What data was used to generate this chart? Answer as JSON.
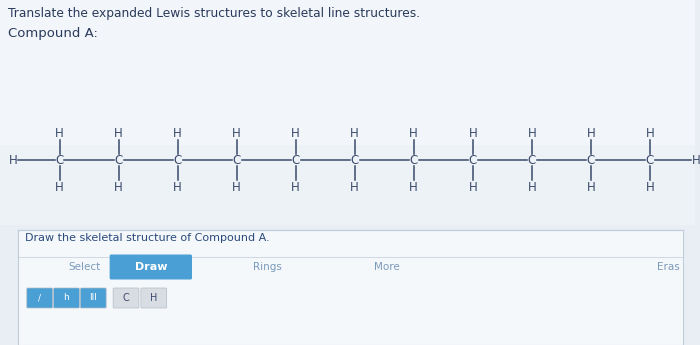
{
  "title": "Translate the expanded Lewis structures to skeletal line structures.",
  "compound_label": "Compound A:",
  "draw_label": "Draw the skeletal structure of Compound A.",
  "n_carbons": 11,
  "bg_top_color": "#e8eef4",
  "bg_bottom_color": "#f0f4f8",
  "white_panel_color": "#f7f9fb",
  "text_color": "#2a3a5a",
  "struct_color": "#3a4a6a",
  "button_color": "#4a9fd4",
  "button_text_color": "#ffffff",
  "toolbar_text_color": "#7a9abb",
  "draw_label_color": "#2a4a7a",
  "separator_color": "#c0ccd8",
  "icon_blue_color": "#4a9fd4",
  "icon_grey_color": "#d8dde3",
  "icon_border_color": "#b0bcc8"
}
